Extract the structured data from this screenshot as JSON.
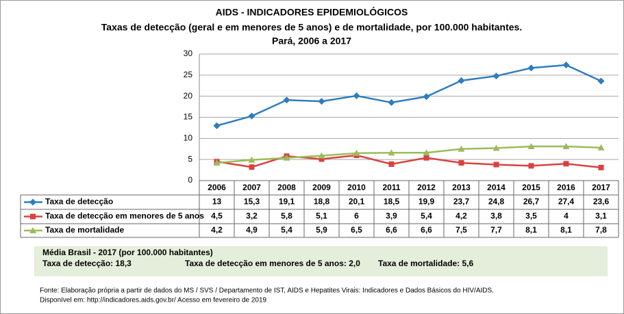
{
  "chart_data": {
    "type": "line",
    "title": "AIDS - INDICADORES EPIDEMIOLÓGICOS",
    "subtitle": "Taxas de detecção (geral e em menores de 5 anos) e de mortalidade, por 100.000 habitantes.",
    "subtitle2": "Pará, 2006 a 2017",
    "categories": [
      "2006",
      "2007",
      "2008",
      "2009",
      "2010",
      "2011",
      "2012",
      "2013",
      "2014",
      "2015",
      "2016",
      "2017"
    ],
    "ylim": [
      0,
      30
    ],
    "yticks": [
      0,
      5,
      10,
      15,
      20,
      25,
      30
    ],
    "grid": true,
    "series": [
      {
        "name": "Taxa de detecção",
        "color": "#2e7dbf",
        "marker": "diamond",
        "values": [
          13,
          15.3,
          19.1,
          18.8,
          20.1,
          18.5,
          19.9,
          23.7,
          24.8,
          26.7,
          27.4,
          23.6
        ],
        "value_labels": [
          "13",
          "15,3",
          "19,1",
          "18,8",
          "20,1",
          "18,5",
          "19,9",
          "23,7",
          "24,8",
          "26,7",
          "27,4",
          "23,6"
        ]
      },
      {
        "name": "Taxa de detecção em menores de 5 anos",
        "color": "#d9413e",
        "marker": "square",
        "values": [
          4.5,
          3.2,
          5.8,
          5.1,
          6,
          3.9,
          5.4,
          4.2,
          3.8,
          3.5,
          4,
          3.1
        ],
        "value_labels": [
          "4,5",
          "3,2",
          "5,8",
          "5,1",
          "6",
          "3,9",
          "5,4",
          "4,2",
          "3,8",
          "3,5",
          "4",
          "3,1"
        ]
      },
      {
        "name": "Taxa de mortalidade",
        "color": "#9bbb59",
        "marker": "triangle",
        "values": [
          4.2,
          4.9,
          5.4,
          5.9,
          6.5,
          6.6,
          6.6,
          7.5,
          7.7,
          8.1,
          8.1,
          7.8
        ],
        "value_labels": [
          "4,2",
          "4,9",
          "5,4",
          "5,9",
          "6,5",
          "6,6",
          "6,6",
          "7,5",
          "7,7",
          "8,1",
          "8,1",
          "7,8"
        ]
      }
    ]
  },
  "summary": {
    "title": "Média Brasil - 2017  (por 100.000 habitantes)",
    "items": [
      "Taxa  de detecção: 18,3",
      "Taxa de detecção em menores de 5 anos: 2,0",
      "Taxa de mortalidade: 5,6"
    ]
  },
  "footer": [
    "Fonte: Elaboração própria a partir de dados do MS / SVS / Departamento de IST, AIDS e Hepatites Virais: Indicadores e Dados Básicos do HIV/AIDS.",
    "Disponível em: http://indicadores.aids.gov.br/   Acesso em fevereiro de 2019"
  ]
}
